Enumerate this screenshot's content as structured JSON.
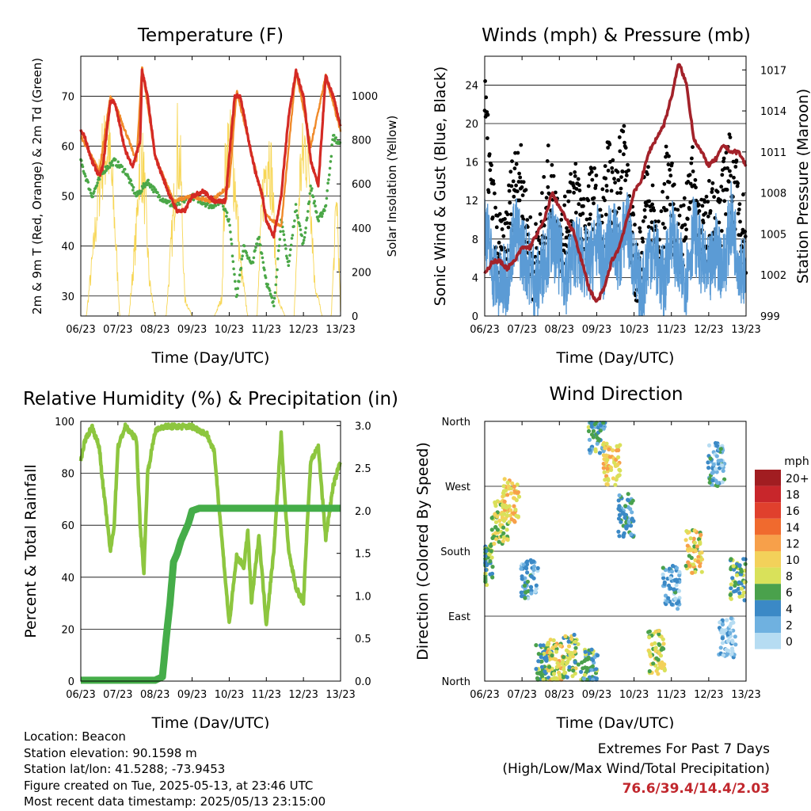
{
  "chart_data": [
    {
      "type": "line",
      "title": "Temperature (F)",
      "xlabel": "Time (Day/UTC)",
      "ylabel": "2m & 9m T (Red, Orange) & 2m Td (Green)",
      "y2label": "Solar Insolation (Yellow)",
      "x_ticks": [
        "06/23",
        "07/23",
        "08/23",
        "09/23",
        "10/23",
        "11/23",
        "12/23",
        "13/23"
      ],
      "ylim": [
        26,
        78
      ],
      "y_ticks": [
        30,
        40,
        50,
        60,
        70
      ],
      "y2lim": [
        0,
        1180
      ],
      "y2_ticks": [
        0,
        200,
        400,
        600,
        800,
        1000
      ],
      "series": [
        {
          "name": "2m T",
          "color": "#d42a24",
          "x": [
            0,
            0.1,
            0.3,
            0.5,
            0.6,
            0.7,
            0.8,
            0.9,
            1.0,
            1.2,
            1.4,
            1.6,
            1.65,
            1.8,
            2.0,
            2.2,
            2.4,
            2.6,
            2.8,
            3.0,
            3.3,
            3.6,
            3.9,
            4.05,
            4.15,
            4.3,
            4.5,
            4.7,
            4.9,
            5.0,
            5.2,
            5.4,
            5.6,
            5.8,
            6.0,
            6.2,
            6.4,
            6.6,
            6.8,
            7.0
          ],
          "values": [
            63,
            62,
            57,
            54,
            56,
            63,
            69,
            69,
            66,
            59,
            56,
            61,
            75,
            70,
            58,
            54,
            50,
            47,
            47,
            50,
            51,
            49,
            49,
            62,
            70,
            70,
            62,
            55,
            50,
            45,
            42,
            50,
            66,
            75,
            70,
            57,
            52,
            74,
            70,
            64
          ]
        },
        {
          "name": "9m T",
          "color": "#f08a2a",
          "x": [
            0,
            0.5,
            0.8,
            1.0,
            1.5,
            1.65,
            2.0,
            2.5,
            3.0,
            3.5,
            4.0,
            4.2,
            4.5,
            5.0,
            5.4,
            5.8,
            6.2,
            6.6,
            7.0
          ],
          "values": [
            62,
            55,
            70,
            67,
            57,
            76,
            58,
            49,
            50,
            49,
            52,
            71,
            62,
            46,
            44,
            75,
            60,
            74,
            63
          ]
        },
        {
          "name": "2m Td",
          "color": "#4aa747",
          "x": [
            0,
            0.3,
            0.6,
            0.9,
            1.2,
            1.5,
            1.8,
            2.1,
            2.5,
            3.0,
            3.5,
            3.8,
            4.0,
            4.2,
            4.4,
            4.6,
            4.8,
            5.0,
            5.2,
            5.4,
            5.6,
            5.8,
            6.0,
            6.2,
            6.4,
            6.6,
            6.8,
            7.0
          ],
          "values": [
            57,
            50,
            55,
            57,
            55,
            50,
            53,
            50,
            48,
            50,
            48,
            49,
            45,
            30,
            40,
            36,
            42,
            33,
            28,
            45,
            36,
            48,
            40,
            52,
            45,
            48,
            62,
            60
          ]
        },
        {
          "name": "Solar Insolation",
          "axis": "y2",
          "color": "#f7d654",
          "x": [
            0,
            0.15,
            0.35,
            0.55,
            0.75,
            0.9,
            1.05,
            1.3,
            1.5,
            1.6,
            1.7,
            1.85,
            2.0,
            2.3,
            2.5,
            2.6,
            2.7,
            2.8,
            3.0,
            3.3,
            3.6,
            3.8,
            3.9,
            4.0,
            4.15,
            4.3,
            4.5,
            4.75,
            4.9,
            5.05,
            5.15,
            5.3,
            5.5,
            5.75,
            5.9,
            6.05,
            6.15,
            6.3,
            6.5,
            6.75,
            6.9,
            7.0
          ],
          "values": [
            0,
            0,
            400,
            900,
            1000,
            600,
            0,
            0,
            500,
            1000,
            800,
            200,
            0,
            0,
            600,
            1000,
            800,
            100,
            0,
            0,
            0,
            100,
            900,
            1000,
            800,
            300,
            0,
            0,
            700,
            1000,
            800,
            100,
            0,
            0,
            800,
            1000,
            900,
            200,
            0,
            0,
            700,
            0
          ]
        }
      ]
    },
    {
      "type": "scatter",
      "title": "Winds (mph) & Pressure (mb)",
      "xlabel": "Time (Day/UTC)",
      "ylabel": "Sonic Wind & Gust (Blue, Black)",
      "y2label": "Station Pressure (Maroon)",
      "x_ticks": [
        "06/23",
        "07/23",
        "08/23",
        "09/23",
        "10/23",
        "11/23",
        "12/23",
        "13/23"
      ],
      "ylim": [
        0,
        27
      ],
      "y_ticks": [
        0,
        4,
        8,
        12,
        16,
        20,
        24
      ],
      "y2lim": [
        999,
        1018
      ],
      "y2_ticks": [
        999,
        1002,
        1005,
        1008,
        1011,
        1014,
        1017
      ],
      "series": [
        {
          "name": "Wind",
          "color": "#5b9bd5",
          "x": [
            0,
            0.2,
            0.4,
            0.6,
            0.8,
            1.0,
            1.2,
            1.4,
            1.6,
            1.8,
            2.0,
            2.2,
            2.4,
            2.6,
            2.8,
            3.0,
            3.2,
            3.4,
            3.6,
            3.8,
            4.0,
            4.2,
            4.4,
            4.6,
            4.8,
            5.0,
            5.2,
            5.4,
            5.6,
            5.8,
            6.0,
            6.2,
            6.4,
            6.6,
            6.8,
            7.0
          ],
          "values": [
            10,
            5,
            3,
            4,
            9,
            7,
            5,
            3,
            6,
            8,
            6,
            4,
            7,
            6,
            5,
            8,
            5,
            9,
            6,
            10,
            5,
            2,
            7,
            6,
            3,
            9,
            5,
            4,
            9,
            6,
            4,
            7,
            5,
            10,
            6,
            4
          ]
        },
        {
          "name": "Gust",
          "color": "#000000",
          "x": [
            0,
            0.1,
            0.3,
            0.5,
            0.7,
            0.9,
            1.1,
            1.3,
            1.5,
            1.7,
            1.9,
            2.1,
            2.3,
            2.5,
            2.7,
            2.9,
            3.1,
            3.3,
            3.5,
            3.7,
            3.9,
            4.1,
            4.3,
            4.5,
            4.7,
            4.9,
            5.1,
            5.3,
            5.5,
            5.7,
            5.9,
            6.1,
            6.3,
            6.5,
            6.7,
            6.9,
            7.0
          ],
          "values": [
            22,
            16,
            8,
            6,
            12,
            16,
            10,
            5,
            8,
            14,
            11,
            7,
            13,
            12,
            9,
            13,
            8,
            15,
            11,
            19,
            9,
            4,
            13,
            10,
            6,
            16,
            9,
            7,
            15,
            11,
            8,
            12,
            9,
            16,
            13,
            10,
            7
          ]
        },
        {
          "name": "Station Pressure",
          "axis": "y2",
          "color": "#a3222a",
          "x": [
            0,
            0.2,
            0.4,
            0.6,
            0.8,
            1.0,
            1.2,
            1.4,
            1.6,
            1.8,
            2.0,
            2.2,
            2.4,
            2.6,
            2.8,
            3.0,
            3.2,
            3.4,
            3.6,
            3.8,
            4.0,
            4.2,
            4.4,
            4.6,
            4.8,
            5.0,
            5.2,
            5.4,
            5.6,
            5.8,
            6.0,
            6.2,
            6.4,
            6.6,
            6.8,
            7.0
          ],
          "values": [
            1002,
            1003,
            1003,
            1002.5,
            1003,
            1004,
            1004,
            1005,
            1006,
            1008,
            1007,
            1006,
            1005,
            1003,
            1001,
            1000,
            1001,
            1003,
            1004,
            1006,
            1008,
            1009,
            1011,
            1012,
            1013,
            1015,
            1017.5,
            1016,
            1012,
            1011,
            1010,
            1010.5,
            1011.5,
            1011,
            1011,
            1010
          ]
        }
      ]
    },
    {
      "type": "line",
      "title": "Relative Humidity (%) & Precipitation (in)",
      "xlabel": "Time (Day/UTC)",
      "ylabel": "Percent & Total Rainfall",
      "x_ticks": [
        "06/23",
        "07/23",
        "08/23",
        "09/23",
        "10/23",
        "11/23",
        "12/23",
        "13/23"
      ],
      "ylim": [
        0,
        100
      ],
      "y_ticks": [
        0,
        20,
        40,
        60,
        80,
        100
      ],
      "y2lim": [
        0,
        3.05
      ],
      "y2_ticks": [
        "0.0",
        "0.5",
        "1.0",
        "1.5",
        "2.0",
        "2.5",
        "3.0"
      ],
      "series": [
        {
          "name": "Relative Humidity",
          "color": "#8dc63f",
          "x": [
            0,
            0.1,
            0.3,
            0.5,
            0.6,
            0.8,
            0.9,
            1.0,
            1.2,
            1.5,
            1.6,
            1.7,
            1.8,
            2.0,
            2.2,
            2.4,
            2.6,
            2.8,
            3.0,
            3.4,
            3.6,
            3.8,
            4.0,
            4.2,
            4.4,
            4.5,
            4.6,
            4.8,
            5.0,
            5.2,
            5.4,
            5.5,
            5.6,
            5.8,
            6.0,
            6.1,
            6.2,
            6.4,
            6.6,
            6.8,
            7.0
          ],
          "values": [
            85,
            92,
            98,
            90,
            75,
            50,
            60,
            90,
            98,
            93,
            60,
            42,
            80,
            96,
            98,
            98,
            98,
            98,
            98,
            95,
            88,
            55,
            22,
            48,
            44,
            58,
            30,
            56,
            22,
            50,
            95,
            70,
            50,
            36,
            30,
            60,
            85,
            90,
            55,
            75,
            85
          ]
        },
        {
          "name": "Total Rainfall",
          "axis": "y2",
          "color": "#45ad49",
          "x": [
            0,
            1.0,
            2.0,
            2.2,
            2.3,
            2.4,
            2.5,
            2.6,
            2.7,
            2.8,
            2.9,
            3.0,
            3.2,
            4.0,
            5.0,
            6.0,
            7.0
          ],
          "values": [
            0.01,
            0.01,
            0.01,
            0.05,
            0.5,
            0.9,
            1.4,
            1.5,
            1.65,
            1.75,
            1.85,
            2.0,
            2.03,
            2.03,
            2.03,
            2.03,
            2.03
          ]
        }
      ]
    },
    {
      "type": "scatter",
      "title": "Wind Direction",
      "xlabel": "Time (Day/UTC)",
      "ylabel": "Direction (Colored By Speed)",
      "x_ticks": [
        "06/23",
        "07/23",
        "08/23",
        "09/23",
        "10/23",
        "11/23",
        "12/23",
        "13/23"
      ],
      "y_ticks": [
        "North",
        "East",
        "South",
        "West",
        "North"
      ],
      "ylim": [
        0,
        360
      ],
      "colorbar": {
        "unit": "mph",
        "labels": [
          "20+",
          "18",
          "16",
          "14",
          "12",
          "10",
          "8",
          "6",
          "4",
          "2",
          "0"
        ],
        "colors": [
          "#a11d21",
          "#c8262b",
          "#e0402d",
          "#f06a2e",
          "#f7a04a",
          "#f3d15a",
          "#d9e15a",
          "#4aa14c",
          "#3b89c6",
          "#6fb1e0",
          "#b6dcf2"
        ]
      },
      "clusters": [
        {
          "t": 0.0,
          "dir": 160,
          "speed": 6
        },
        {
          "t": 0.4,
          "dir": 220,
          "speed": 8
        },
        {
          "t": 0.7,
          "dir": 250,
          "speed": 10
        },
        {
          "t": 1.2,
          "dir": 140,
          "speed": 3
        },
        {
          "t": 1.6,
          "dir": 20,
          "speed": 6
        },
        {
          "t": 1.9,
          "dir": 30,
          "speed": 9
        },
        {
          "t": 2.3,
          "dir": 35,
          "speed": 7
        },
        {
          "t": 2.8,
          "dir": 15,
          "speed": 5
        },
        {
          "t": 3.0,
          "dir": 345,
          "speed": 5
        },
        {
          "t": 3.4,
          "dir": 300,
          "speed": 10
        },
        {
          "t": 3.8,
          "dir": 230,
          "speed": 4
        },
        {
          "t": 4.6,
          "dir": 40,
          "speed": 8
        },
        {
          "t": 5.0,
          "dir": 130,
          "speed": 3
        },
        {
          "t": 5.6,
          "dir": 180,
          "speed": 9
        },
        {
          "t": 6.2,
          "dir": 300,
          "speed": 3
        },
        {
          "t": 6.5,
          "dir": 60,
          "speed": 2
        },
        {
          "t": 6.8,
          "dir": 140,
          "speed": 6
        }
      ]
    }
  ],
  "footer": {
    "location": "Location: Beacon",
    "elevation": "Station elevation: 90.1598 m",
    "latlon": "Station lat/lon: 41.5288; -73.9453",
    "created": "Figure created on Tue, 2025-05-13, at 23:46 UTC",
    "recent": "Most recent data timestamp: 2025/05/13 23:15:00"
  },
  "extremes": {
    "title": "Extremes For Past 7 Days",
    "subtitle": "(High/Low/Max Wind/Total Precipitation)",
    "values": "76.6/39.4/14.4/2.03"
  }
}
